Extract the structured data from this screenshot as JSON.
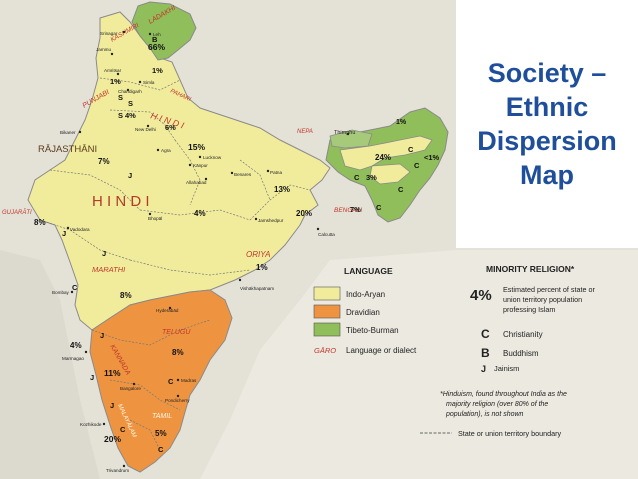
{
  "title": "Society –\nEthnic\nDispersion\nMap",
  "colors": {
    "background": "#e9e6dd",
    "sea": "#d9d9d2",
    "indo_aryan": "#f1ec9c",
    "dravidian": "#ee9441",
    "tibeto_burman": "#8fbe5a",
    "title": "#1f4e9a",
    "language_label": "#c0392b",
    "border": "#666666"
  },
  "map_labels": {
    "languages": [
      {
        "id": "ladakhi",
        "text": "LADAKHI"
      },
      {
        "id": "kashmiri",
        "text": "KASHMIRI"
      },
      {
        "id": "punjabi",
        "text": "PUNJABI"
      },
      {
        "id": "pahari",
        "text": "PAHARI"
      },
      {
        "id": "hindi-north",
        "text": "H I N D I"
      },
      {
        "id": "rajasthani",
        "text": "RĀJASTHĀNI"
      },
      {
        "id": "hindi-main",
        "text": "H    I    N    D    I"
      },
      {
        "id": "gujarati",
        "text": "GUJARĀTI"
      },
      {
        "id": "marathi",
        "text": "MARATHI"
      },
      {
        "id": "oriya",
        "text": "ORIYA"
      },
      {
        "id": "telugu",
        "text": "TELUGU"
      },
      {
        "id": "kannada",
        "text": "KANNADA"
      },
      {
        "id": "tamil",
        "text": "TAMIL"
      },
      {
        "id": "malayalam",
        "text": "MALAYĀLAM"
      },
      {
        "id": "bengali",
        "text": "BENGALI"
      },
      {
        "id": "nepali",
        "text": "NEPA"
      }
    ],
    "percentages": [
      {
        "id": "p-ladakh",
        "text": "66%"
      },
      {
        "id": "p-kashmir",
        "text": "1%"
      },
      {
        "id": "p-jammu",
        "text": "1%"
      },
      {
        "id": "p-punjab",
        "text": "4%"
      },
      {
        "id": "p-delhi",
        "text": "6%"
      },
      {
        "id": "p-up",
        "text": "15%"
      },
      {
        "id": "p-raj",
        "text": "7%"
      },
      {
        "id": "p-bihar",
        "text": "13%"
      },
      {
        "id": "p-mp",
        "text": "4%"
      },
      {
        "id": "p-wb",
        "text": "20%"
      },
      {
        "id": "p-guj",
        "text": "8%"
      },
      {
        "id": "p-ori",
        "text": "1%"
      },
      {
        "id": "p-mah",
        "text": "8%"
      },
      {
        "id": "p-ap",
        "text": "8%"
      },
      {
        "id": "p-kar",
        "text": "11%"
      },
      {
        "id": "p-goa",
        "text": "4%"
      },
      {
        "id": "p-tn",
        "text": "5%"
      },
      {
        "id": "p-ker",
        "text": "20%"
      },
      {
        "id": "p-assam",
        "text": "24%"
      },
      {
        "id": "p-ne1",
        "text": "<1%"
      },
      {
        "id": "p-ne2",
        "text": "1%"
      },
      {
        "id": "p-tri",
        "text": "7%"
      },
      {
        "id": "p-meg",
        "text": "3%"
      }
    ],
    "cities": [
      {
        "id": "srinagar",
        "text": "Srinagar"
      },
      {
        "id": "leh",
        "text": "Leh"
      },
      {
        "id": "jammu",
        "text": "Jammu"
      },
      {
        "id": "amritsar",
        "text": "Amritsar"
      },
      {
        "id": "simla",
        "text": "Simla"
      },
      {
        "id": "chandigarh",
        "text": "Chandigarh"
      },
      {
        "id": "new-delhi",
        "text": "New Delhi"
      },
      {
        "id": "bikaner",
        "text": "Bikaner"
      },
      {
        "id": "agra",
        "text": "Agra"
      },
      {
        "id": "lucknow",
        "text": "Lucknow"
      },
      {
        "id": "kanpur",
        "text": "Kānpur"
      },
      {
        "id": "allahabad",
        "text": "Allahabad"
      },
      {
        "id": "benares",
        "text": "Benares"
      },
      {
        "id": "patna",
        "text": "Patna"
      },
      {
        "id": "bhopal",
        "text": "Bhopāl"
      },
      {
        "id": "jamshedpur",
        "text": "Jamshedpur"
      },
      {
        "id": "calcutta",
        "text": "Calcutta"
      },
      {
        "id": "vadodara",
        "text": "Vadodara"
      },
      {
        "id": "bombay",
        "text": "Bombay"
      },
      {
        "id": "hyderabad",
        "text": "Hyderābād"
      },
      {
        "id": "vishakhapatnam",
        "text": "Vishākhapatnam"
      },
      {
        "id": "marmagao",
        "text": "Marmagao"
      },
      {
        "id": "bangalore",
        "text": "Bangalore"
      },
      {
        "id": "madras",
        "text": "Madras"
      },
      {
        "id": "pondicherry",
        "text": "Pondicherry"
      },
      {
        "id": "kozhikode",
        "text": "Kozhikode"
      },
      {
        "id": "trivandrum",
        "text": "Trivandrum"
      },
      {
        "id": "thimphu",
        "text": "Thimphu"
      }
    ],
    "religion_symbols": [
      "B",
      "S",
      "S",
      "S",
      "J",
      "J",
      "J",
      "J",
      "C",
      "J",
      "C",
      "C",
      "C",
      "C",
      "C",
      "C",
      "C",
      "C",
      "J"
    ]
  },
  "legend": {
    "language_heading": "LANGUAGE",
    "items": [
      {
        "label": "Indo-Aryan",
        "color": "#f1ec9c"
      },
      {
        "label": "Dravidian",
        "color": "#ee9441"
      },
      {
        "label": "Tibeto-Burman",
        "color": "#8fbe5a"
      }
    ],
    "dialect_sample": "GĀRO",
    "dialect_label": "Language or dialect",
    "religion_heading": "MINORITY RELIGION*",
    "percent_sample": "4%",
    "percent_desc": [
      "Estimated percent of state or",
      "union territory population",
      "professing Islam"
    ],
    "symbols": [
      {
        "symbol": "C",
        "label": "Christianity"
      },
      {
        "symbol": "B",
        "label": "Buddhism"
      },
      {
        "symbol": "J",
        "label": "Jainism"
      }
    ],
    "footnote": [
      "*Hinduism, found throughout India as the",
      "majority religion (over 80% of the",
      "population), is not shown"
    ],
    "boundary_label": "State or union territory boundary"
  }
}
